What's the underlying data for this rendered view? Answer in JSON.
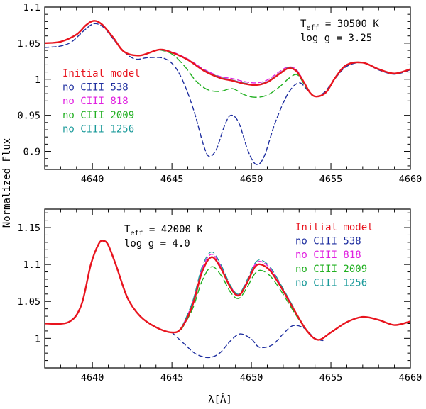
{
  "figure": {
    "ylabel": "Normalized Flux",
    "xlabel": "λ[Å]"
  },
  "chart_data": [
    {
      "type": "line",
      "xlim": [
        4637,
        4660
      ],
      "ylim": [
        0.875,
        1.1
      ],
      "xticks": [
        4640,
        4645,
        4650,
        4655,
        4660
      ],
      "yticks": [
        0.9,
        0.95,
        1,
        1.05,
        1.1
      ],
      "ytick_labels": [
        "0.9",
        "0.95",
        "1",
        "1.05",
        "1.1"
      ],
      "params": {
        "teff_label": "T",
        "teff_sub": "eff",
        "teff_value": " = 30500 K",
        "logg": "log g = 3.25"
      },
      "legend": [
        {
          "label": "Initial model",
          "color": "#e8141e"
        },
        {
          "label": "no CIII 538",
          "color": "#1f2fa0"
        },
        {
          "label": "no CIII 818",
          "color": "#e020e0"
        },
        {
          "label": "no CIII 2009",
          "color": "#22b022"
        },
        {
          "label": "no CIII 1256",
          "color": "#1a9a9a"
        }
      ],
      "series": [
        {
          "name": "Initial model",
          "color": "#e8141e",
          "dash": "",
          "width": 2.4,
          "x": [
            4637,
            4638,
            4639,
            4639.6,
            4640.1,
            4640.6,
            4641.3,
            4642,
            4643,
            4644.2,
            4645,
            4646,
            4647,
            4648,
            4648.8,
            4649.5,
            4650.3,
            4651,
            4651.8,
            4652.3,
            4652.8,
            4653.3,
            4653.7,
            4654.1,
            4654.7,
            4655.3,
            4656,
            4657,
            4658,
            4659,
            4660
          ],
          "y": [
            1.05,
            1.052,
            1.062,
            1.075,
            1.081,
            1.076,
            1.058,
            1.038,
            1.033,
            1.041,
            1.037,
            1.027,
            1.012,
            1.002,
            0.998,
            0.994,
            0.992,
            0.996,
            1.008,
            1.015,
            1.012,
            0.996,
            0.981,
            0.976,
            0.982,
            1.003,
            1.02,
            1.023,
            1.014,
            1.008,
            1.014
          ]
        },
        {
          "name": "no CIII 538",
          "color": "#1f2fa0",
          "dash": "6,4",
          "width": 1.4,
          "x": [
            4637,
            4638,
            4638.7,
            4639.5,
            4640.1,
            4640.7,
            4641.3,
            4642,
            4642.7,
            4643.5,
            4644.5,
            4645.2,
            4645.8,
            4646.4,
            4647,
            4647.35,
            4647.8,
            4648.3,
            4648.7,
            4649.2,
            4649.8,
            4650.3,
            4650.8,
            4651.5,
            4652.3,
            4653,
            4653.6,
            4654,
            4654.6,
            4655.3,
            4656,
            4657,
            4658,
            4659,
            4660
          ],
          "y": [
            1.044,
            1.046,
            1.052,
            1.068,
            1.077,
            1.072,
            1.056,
            1.038,
            1.028,
            1.03,
            1.029,
            1.017,
            0.992,
            0.955,
            0.908,
            0.893,
            0.903,
            0.935,
            0.95,
            0.94,
            0.9,
            0.882,
            0.893,
            0.94,
            0.98,
            0.995,
            0.983,
            0.976,
            0.982,
            1.002,
            1.018,
            1.023,
            1.013,
            1.007,
            1.013
          ]
        },
        {
          "name": "no CIII 818",
          "color": "#e020e0",
          "dash": "6,4",
          "width": 1.4,
          "x": [
            4644.2,
            4645,
            4646,
            4647,
            4648,
            4648.8,
            4649.5,
            4650.3,
            4651,
            4651.8,
            4652.3,
            4652.8,
            4653.3
          ],
          "y": [
            1.041,
            1.038,
            1.028,
            1.014,
            1.004,
            1.001,
            0.997,
            0.995,
            0.999,
            1.011,
            1.017,
            1.014,
            0.997
          ]
        },
        {
          "name": "no CIII 2009",
          "color": "#22b022",
          "dash": "9,5",
          "width": 1.4,
          "x": [
            4644.2,
            4645,
            4645.8,
            4646.5,
            4647.2,
            4648,
            4648.8,
            4649.5,
            4650.2,
            4651,
            4651.8,
            4652.4,
            4652.9,
            4653.4,
            4653.8
          ],
          "y": [
            1.041,
            1.035,
            1.018,
            0.998,
            0.986,
            0.983,
            0.987,
            0.979,
            0.975,
            0.978,
            0.99,
            1.002,
            1.006,
            0.99,
            0.978
          ]
        },
        {
          "name": "no CIII 1256",
          "color": "#1a9a9a",
          "dash": "9,5",
          "width": 1.2,
          "x": [
            4644.2,
            4645,
            4646,
            4647,
            4648,
            4648.8,
            4649.5,
            4650.3,
            4651,
            4651.8,
            4652.3,
            4652.8,
            4653.3
          ],
          "y": [
            1.041,
            1.037,
            1.027,
            1.013,
            1.003,
            0.999,
            0.995,
            0.993,
            0.997,
            1.009,
            1.016,
            1.013,
            0.996
          ]
        }
      ]
    },
    {
      "type": "line",
      "xlim": [
        4637,
        4660
      ],
      "ylim": [
        0.96,
        1.175
      ],
      "xticks": [
        4640,
        4645,
        4650,
        4655,
        4660
      ],
      "yticks": [
        1,
        1.05,
        1.1,
        1.15
      ],
      "ytick_labels": [
        "1",
        "1.05",
        "1.1",
        "1.15"
      ],
      "params": {
        "teff_label": "T",
        "teff_sub": "eff",
        "teff_value": " = 42000 K",
        "logg": "log g = 4.0"
      },
      "legend": [
        {
          "label": "Initial model",
          "color": "#e8141e"
        },
        {
          "label": "no CIII 538",
          "color": "#1f2fa0"
        },
        {
          "label": "no CIII 818",
          "color": "#e020e0"
        },
        {
          "label": "no CIII 2009",
          "color": "#22b022"
        },
        {
          "label": "no CIII 1256",
          "color": "#1a9a9a"
        }
      ],
      "series": [
        {
          "name": "Initial model",
          "color": "#e8141e",
          "dash": "",
          "width": 2.4,
          "x": [
            4637,
            4638.5,
            4639.3,
            4639.9,
            4640.4,
            4640.7,
            4641,
            4641.5,
            4642.2,
            4643,
            4644,
            4645,
            4645.6,
            4646.3,
            4646.9,
            4647.5,
            4648.1,
            4648.7,
            4649.2,
            4649.7,
            4650.2,
            4650.6,
            4651.2,
            4651.9,
            4652.7,
            4653.5,
            4654.2,
            4655,
            4656,
            4657,
            4658,
            4659,
            4660
          ],
          "y": [
            1.02,
            1.022,
            1.045,
            1.1,
            1.128,
            1.132,
            1.126,
            1.098,
            1.055,
            1.03,
            1.015,
            1.008,
            1.014,
            1.045,
            1.09,
            1.11,
            1.094,
            1.068,
            1.058,
            1.074,
            1.096,
            1.1,
            1.091,
            1.068,
            1.038,
            1.01,
            0.998,
            1.008,
            1.022,
            1.029,
            1.025,
            1.018,
            1.023
          ]
        },
        {
          "name": "no CIII 538",
          "color": "#1f2fa0",
          "dash": "6,4",
          "width": 1.4,
          "x": [
            4645,
            4645.8,
            4646.5,
            4647.3,
            4648,
            4648.7,
            4649.3,
            4650,
            4650.5,
            4651.3,
            4652,
            4652.6,
            4653.3,
            4654,
            4654.5
          ],
          "y": [
            1.008,
            0.992,
            0.979,
            0.974,
            0.98,
            0.997,
            1.006,
            0.999,
            0.988,
            0.991,
            1.006,
            1.017,
            1.014,
            1.0,
            0.997
          ]
        },
        {
          "name": "no CIII 818",
          "color": "#e020e0",
          "dash": "6,4",
          "width": 1.4,
          "x": [
            4645.6,
            4646.3,
            4646.9,
            4647.5,
            4648.1,
            4648.7,
            4649.2,
            4649.7,
            4650.2,
            4650.6,
            4651.2,
            4651.9,
            4652.7
          ],
          "y": [
            1.014,
            1.048,
            1.094,
            1.114,
            1.097,
            1.07,
            1.059,
            1.076,
            1.099,
            1.104,
            1.094,
            1.07,
            1.039
          ]
        },
        {
          "name": "no CIII 2009",
          "color": "#22b022",
          "dash": "9,5",
          "width": 1.4,
          "x": [
            4645.6,
            4646.3,
            4646.9,
            4647.5,
            4648.1,
            4648.7,
            4649.2,
            4649.7,
            4650.2,
            4650.6,
            4651.2,
            4651.9,
            4652.7,
            4653.5
          ],
          "y": [
            1.012,
            1.04,
            1.078,
            1.097,
            1.085,
            1.062,
            1.054,
            1.068,
            1.087,
            1.092,
            1.084,
            1.063,
            1.035,
            1.009
          ]
        },
        {
          "name": "no CIII 1256",
          "color": "#1a9a9a",
          "dash": "9,5",
          "width": 1.2,
          "x": [
            4645.6,
            4646.3,
            4646.9,
            4647.5,
            4648.1,
            4648.7,
            4649.2,
            4649.7,
            4650.2,
            4650.6,
            4651.2,
            4651.9,
            4652.7
          ],
          "y": [
            1.014,
            1.05,
            1.097,
            1.117,
            1.099,
            1.071,
            1.06,
            1.078,
            1.101,
            1.106,
            1.096,
            1.071,
            1.04
          ]
        }
      ]
    }
  ]
}
